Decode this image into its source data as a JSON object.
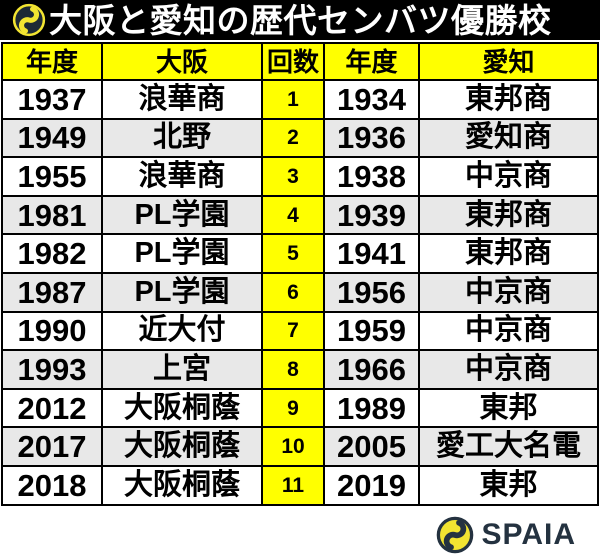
{
  "title": "大阪と愛知の歴代センバツ優勝校",
  "columns": [
    "年度",
    "大阪",
    "回数",
    "年度",
    "愛知"
  ],
  "rows": [
    {
      "osaka_year": "1937",
      "osaka_school": "浪華商",
      "count": "1",
      "aichi_year": "1934",
      "aichi_school": "東邦商"
    },
    {
      "osaka_year": "1949",
      "osaka_school": "北野",
      "count": "2",
      "aichi_year": "1936",
      "aichi_school": "愛知商"
    },
    {
      "osaka_year": "1955",
      "osaka_school": "浪華商",
      "count": "3",
      "aichi_year": "1938",
      "aichi_school": "中京商"
    },
    {
      "osaka_year": "1981",
      "osaka_school": "PL学園",
      "count": "4",
      "aichi_year": "1939",
      "aichi_school": "東邦商"
    },
    {
      "osaka_year": "1982",
      "osaka_school": "PL学園",
      "count": "5",
      "aichi_year": "1941",
      "aichi_school": "東邦商"
    },
    {
      "osaka_year": "1987",
      "osaka_school": "PL学園",
      "count": "6",
      "aichi_year": "1956",
      "aichi_school": "中京商"
    },
    {
      "osaka_year": "1990",
      "osaka_school": "近大付",
      "count": "7",
      "aichi_year": "1959",
      "aichi_school": "中京商"
    },
    {
      "osaka_year": "1993",
      "osaka_school": "上宮",
      "count": "8",
      "aichi_year": "1966",
      "aichi_school": "中京商"
    },
    {
      "osaka_year": "2012",
      "osaka_school": "大阪桐蔭",
      "count": "9",
      "aichi_year": "1989",
      "aichi_school": "東邦"
    },
    {
      "osaka_year": "2017",
      "osaka_school": "大阪桐蔭",
      "count": "10",
      "aichi_year": "2005",
      "aichi_school": "愛工大名電"
    },
    {
      "osaka_year": "2018",
      "osaka_school": "大阪桐蔭",
      "count": "11",
      "aichi_year": "2019",
      "aichi_school": "東邦"
    }
  ],
  "footer": {
    "brand": "SPAIA"
  },
  "icons": {
    "title_logo": "spaia-logo-icon",
    "footer_logo": "spaia-brand-icon"
  },
  "colors": {
    "highlight_yellow": "#ffff00",
    "row_alt_gray": "#e8e8e8",
    "title_bar_black": "#000000",
    "brand_navy": "#243240",
    "brand_yellow": "#f2e431"
  }
}
